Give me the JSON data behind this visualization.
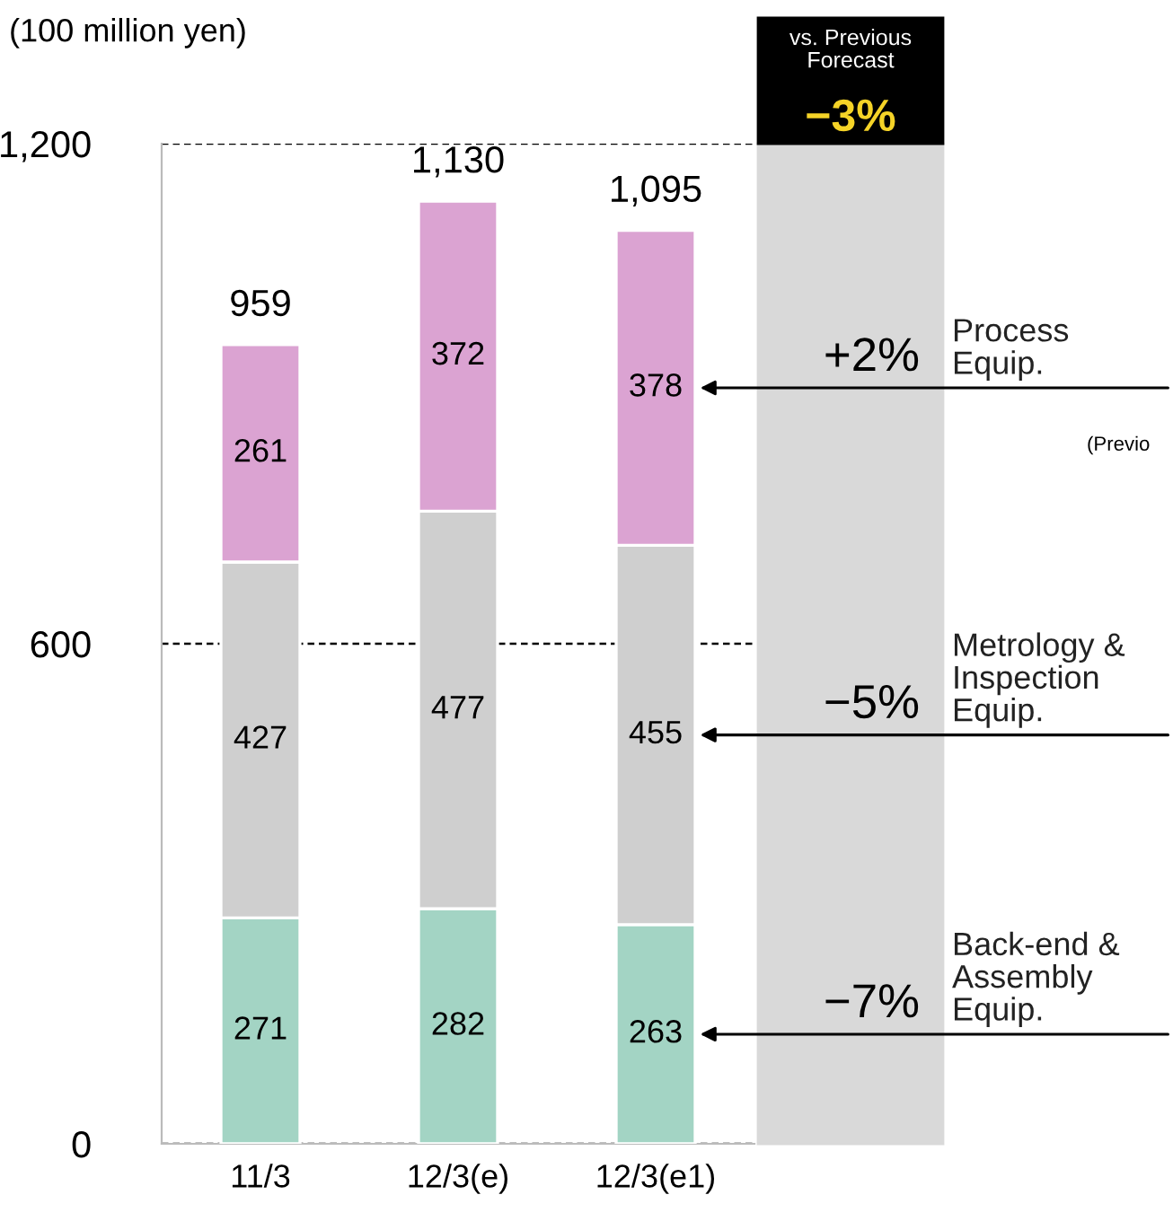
{
  "chart_data": {
    "type": "bar",
    "stacked": true,
    "ylabel": "(100 million yen)",
    "categories": [
      "11/3",
      "12/3(e)",
      "12/3(e1)"
    ],
    "series": [
      {
        "name": "Back-end &\nAssembly\nEquip.",
        "color": "#a3d4c4",
        "values": [
          271,
          282,
          263
        ]
      },
      {
        "name": "Metrology &\nInspection\nEquip.",
        "color": "#cfcfcf",
        "values": [
          427,
          477,
          455
        ]
      },
      {
        "name": "Process\nEquip.",
        "color": "#dba3d2",
        "values": [
          261,
          372,
          378
        ]
      }
    ],
    "totals": [
      "959",
      "1,130",
      "1,095"
    ],
    "data_labels": true,
    "ylim": [
      0,
      1200
    ],
    "yticks": [
      0,
      {
        "value": 600,
        "label": "600"
      },
      {
        "value": 1200,
        "label": "1,200"
      }
    ],
    "grid": "y",
    "legend": false,
    "annotations": [
      "vs. Previous\nForecast",
      "−3%",
      "(Previo",
      "+2%",
      "−5%",
      "−7%"
    ]
  }
}
